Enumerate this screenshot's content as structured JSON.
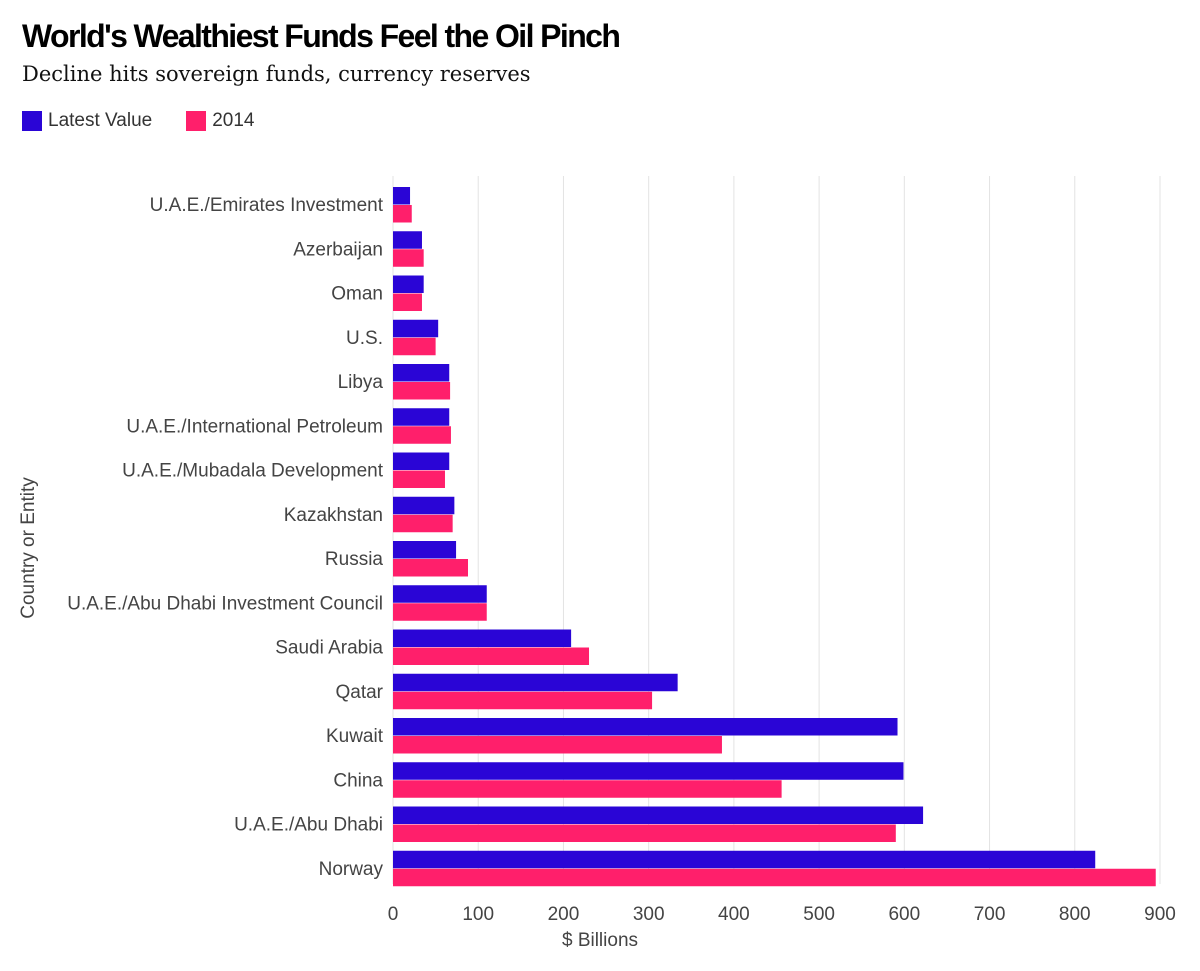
{
  "title": "World's Wealthiest Funds Feel the Oil Pinch",
  "subtitle": "Decline hits sovereign funds, currency reserves",
  "colors": {
    "latest": "#2a05d6",
    "y2014": "#ff1f6b",
    "grid": "#e3e3e3",
    "tick": "#444444"
  },
  "chart_data": {
    "type": "bar",
    "orientation": "horizontal",
    "title": "World's Wealthiest Funds Feel the Oil Pinch",
    "subtitle": "Decline hits sovereign funds, currency reserves",
    "xlabel": "$ Billions",
    "ylabel": "Country or Entity",
    "xlim": [
      0,
      900
    ],
    "xticks": [
      0,
      100,
      200,
      300,
      400,
      500,
      600,
      700,
      800,
      900
    ],
    "grid": true,
    "legend_position": "top-left",
    "categories": [
      "U.A.E./Emirates Investment",
      "Azerbaijan",
      "Oman",
      "U.S.",
      "Libya",
      "U.A.E./International Petroleum",
      "U.A.E./Mubadala Development",
      "Kazakhstan",
      "Russia",
      "U.A.E./Abu Dhabi Investment Council",
      "Saudi Arabia",
      "Qatar",
      "Kuwait",
      "China",
      "U.A.E./Abu Dhabi",
      "Norway"
    ],
    "series": [
      {
        "name": "Latest Value",
        "color": "#2a05d6",
        "values": [
          20,
          34,
          36,
          53,
          66,
          66,
          66,
          72,
          74,
          110,
          209,
          334,
          592,
          599,
          622,
          824
        ]
      },
      {
        "name": "2014",
        "color": "#ff1f6b",
        "values": [
          22,
          36,
          34,
          50,
          67,
          68,
          61,
          70,
          88,
          110,
          230,
          304,
          386,
          456,
          590,
          895
        ]
      }
    ]
  }
}
